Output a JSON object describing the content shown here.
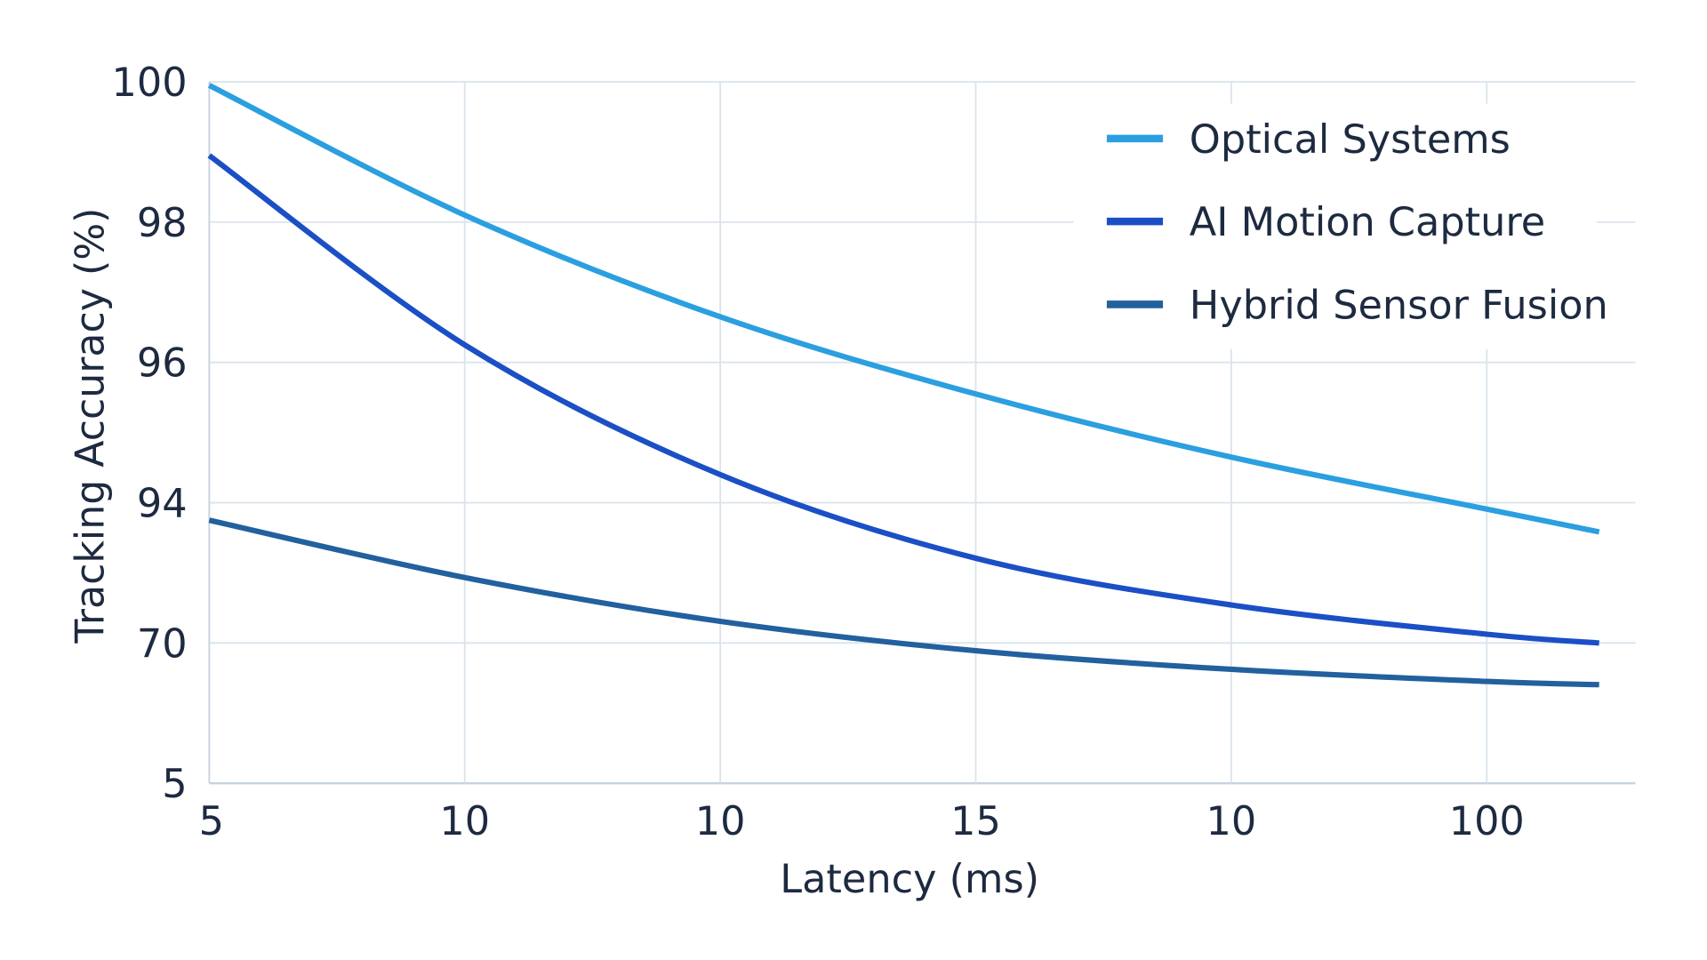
{
  "chart_data": {
    "type": "line",
    "title": "",
    "xlabel": "Latency (ms)",
    "ylabel": "Tracking Accuracy (%)",
    "x_tick_labels": [
      "5",
      "10",
      "10",
      "15",
      "10",
      "100"
    ],
    "y_tick_labels": [
      "100",
      "98",
      "96",
      "94",
      "70",
      "5"
    ],
    "y_ticks": [
      100,
      98,
      96,
      94,
      70,
      5
    ],
    "grid": true,
    "legend_position": "top-right",
    "series": [
      {
        "name": "Optical Systems",
        "color": "#2b9fe0",
        "values": [
          99.95,
          98.1,
          96.65,
          95.55,
          94.65,
          92.9
        ],
        "end_value": 89.0
      },
      {
        "name": "AI Motion Capture",
        "color": "#1b4fc6",
        "values": [
          98.95,
          96.25,
          94.4,
          84.5,
          76.5,
          71.5
        ],
        "end_value": 70.0
      },
      {
        "name": "Hybrid Sensor Fusion",
        "color": "#22609e",
        "values": [
          91.0,
          81.2,
          73.7,
          66.4,
          57.8,
          52.2
        ],
        "end_value": 50.7
      }
    ]
  }
}
